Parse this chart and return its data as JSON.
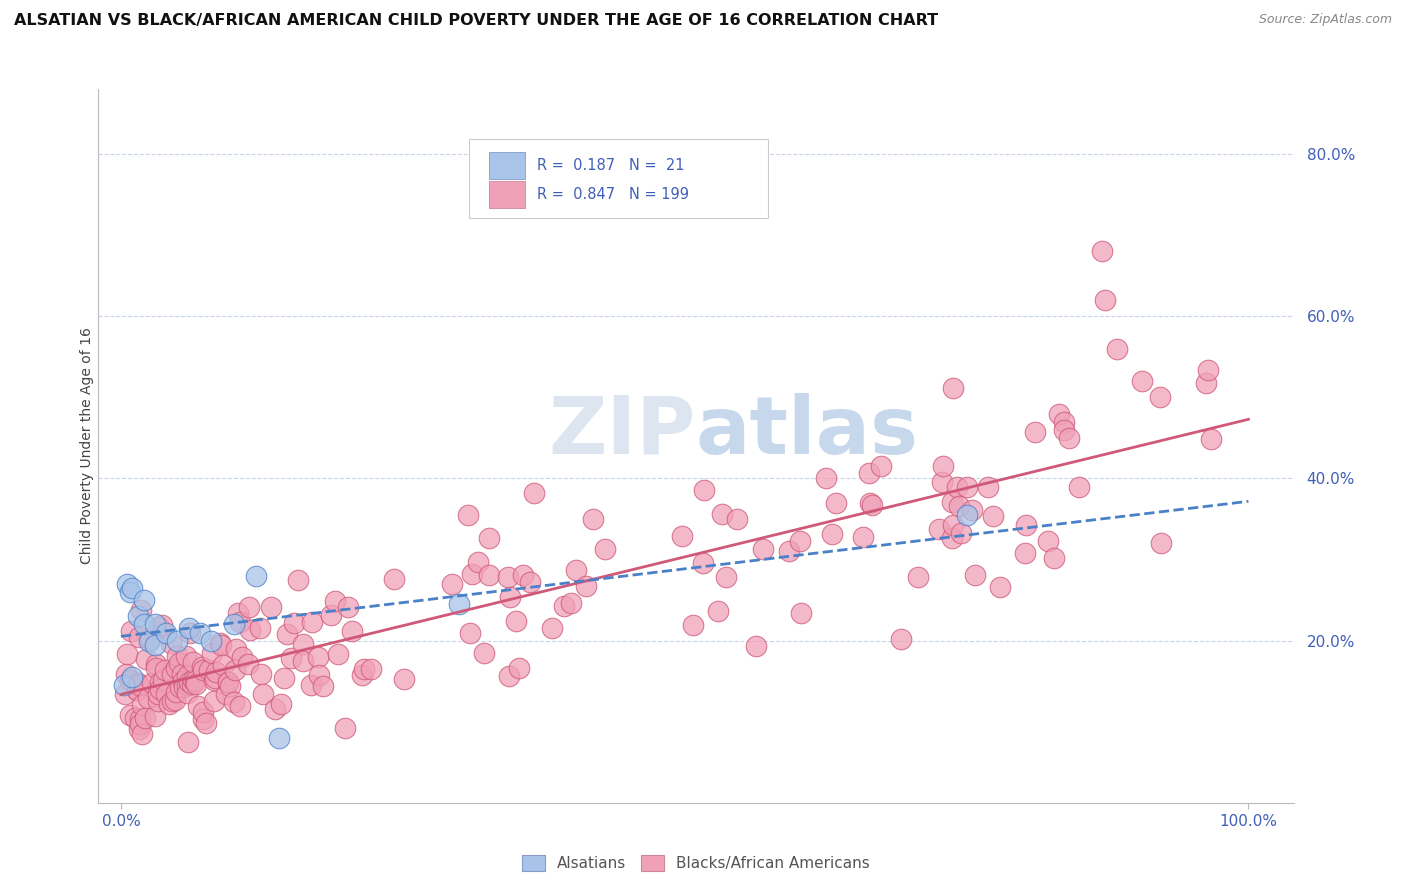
{
  "title": "ALSATIAN VS BLACK/AFRICAN AMERICAN CHILD POVERTY UNDER THE AGE OF 16 CORRELATION CHART",
  "source": "Source: ZipAtlas.com",
  "ylabel": "Child Poverty Under the Age of 16",
  "ytick_vals": [
    0.2,
    0.4,
    0.6,
    0.8
  ],
  "ytick_labels": [
    "20.0%",
    "40.0%",
    "60.0%",
    "80.0%"
  ],
  "xtick_vals": [
    0.0,
    1.0
  ],
  "xtick_labels": [
    "0.0%",
    "100.0%"
  ],
  "color_alsatian": "#a8c4e8",
  "color_black": "#f0a0b8",
  "color_line_als": "#4a80c8",
  "color_line_blk": "#d05878",
  "color_text_blue": "#4060b8",
  "background_color": "#ffffff",
  "grid_color": "#c8d4e8",
  "watermark": "ZIPatlas",
  "legend_row1": "R =  0.187   N =  21",
  "legend_row2": "R =  0.847   N = 199",
  "bottom_label1": "Alsatians",
  "bottom_label2": "Blacks/African Americans"
}
